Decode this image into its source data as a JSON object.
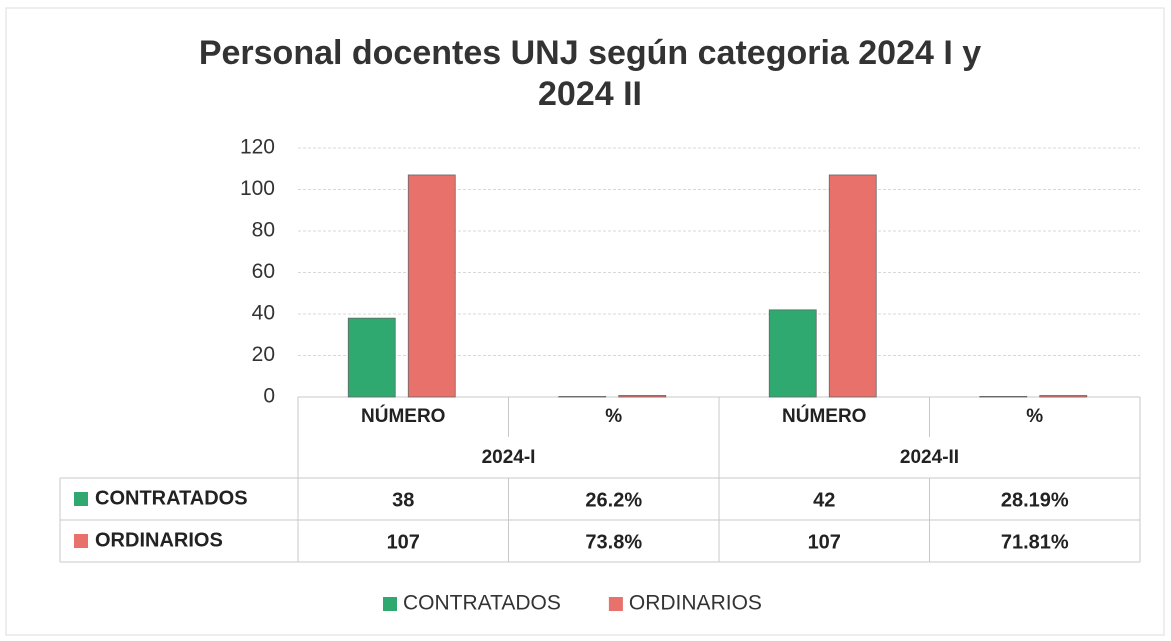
{
  "chart_data": {
    "type": "bar",
    "title": "Personal docentes UNJ según categoria 2024 I y 2024 II",
    "categories": [
      "NÚMERO",
      "%",
      "NÚMERO",
      "%"
    ],
    "groups": [
      "2024-I",
      "2024-II"
    ],
    "series": [
      {
        "name": "CONTRATADOS",
        "color": "#2fa96f",
        "values": [
          38,
          0.262,
          42,
          0.2819
        ],
        "value_labels": [
          "38",
          "26.2%",
          "42",
          "28.19%"
        ]
      },
      {
        "name": "ORDINARIOS",
        "color": "#e8716b",
        "values": [
          107,
          0.738,
          107,
          0.7181
        ],
        "value_labels": [
          "107",
          "73.8%",
          "107",
          "71.81%"
        ]
      }
    ],
    "ylim": [
      0,
      120
    ],
    "yticks": [
      0,
      20,
      40,
      60,
      80,
      100,
      120
    ],
    "grid": true,
    "legend": "bottom"
  }
}
